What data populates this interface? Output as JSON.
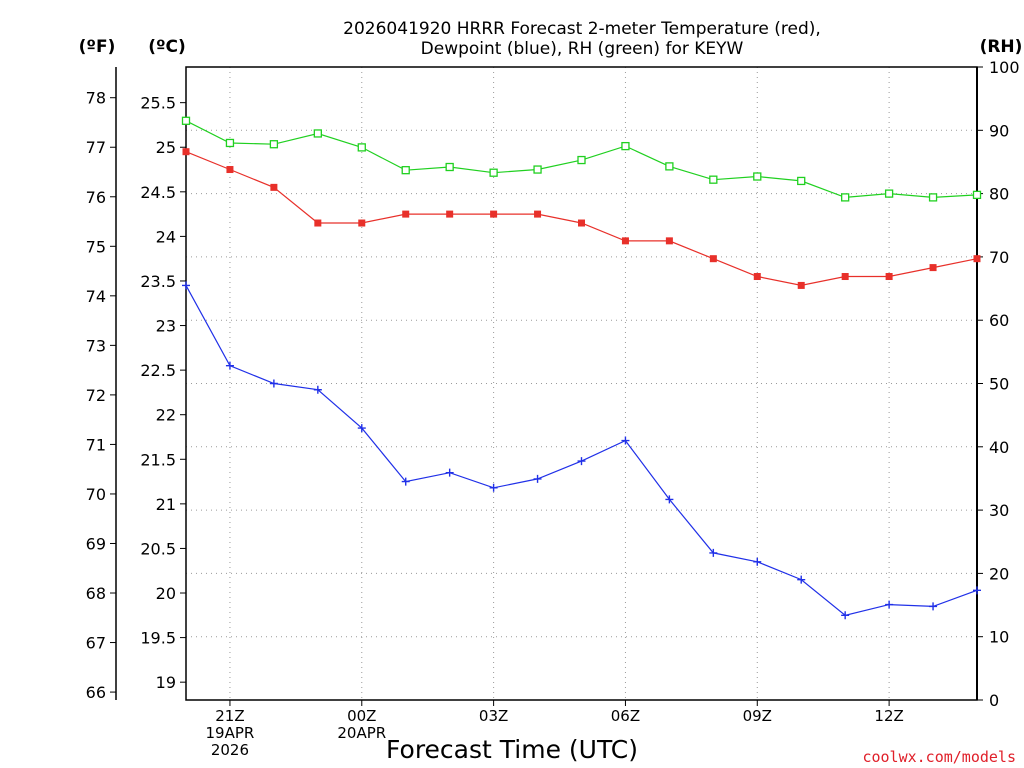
{
  "header": {
    "title_line1": "2026041920 HRRR Forecast 2-meter Temperature (red),",
    "title_line2": "Dewpoint (blue), RH (green) for KEYW"
  },
  "units": {
    "fahrenheit": "(ºF)",
    "celsius": "(ºC)",
    "rh": "(RH)"
  },
  "footer": {
    "credit": "coolwx.com/models",
    "credit_color": "#e0202a"
  },
  "chart_data": {
    "type": "line",
    "title": "2026041920 HRRR Forecast 2-meter Temperature (red), Dewpoint (blue), RH (green) for KEYW",
    "xlabel": "Forecast Time (UTC)",
    "x": [
      0,
      1,
      2,
      3,
      4,
      5,
      6,
      7,
      8,
      9,
      10,
      11,
      12,
      13,
      14,
      15,
      16,
      17,
      18
    ],
    "x_ticks": [
      {
        "x": 1,
        "lines": [
          "21Z",
          "19APR",
          "2026"
        ]
      },
      {
        "x": 4,
        "lines": [
          "00Z",
          "20APR"
        ]
      },
      {
        "x": 7,
        "lines": [
          "03Z"
        ]
      },
      {
        "x": 10,
        "lines": [
          "06Z"
        ]
      },
      {
        "x": 13,
        "lines": [
          "09Z"
        ]
      },
      {
        "x": 16,
        "lines": [
          "12Z"
        ]
      }
    ],
    "xlim": [
      0,
      18
    ],
    "celsius_axis": {
      "label": "(ºC)",
      "ylim": [
        18.8,
        25.9
      ],
      "ticks": [
        19,
        19.5,
        20,
        20.5,
        21,
        21.5,
        22,
        22.5,
        23,
        23.5,
        24,
        24.5,
        25,
        25.5
      ]
    },
    "fahrenheit_axis": {
      "label": "(ºF)",
      "ticks": [
        66,
        67,
        68,
        69,
        70,
        71,
        72,
        73,
        74,
        75,
        76,
        77,
        78
      ]
    },
    "rh_axis": {
      "label": "(RH)",
      "ylim": [
        0,
        100
      ],
      "ticks": [
        0,
        10,
        20,
        30,
        40,
        50,
        60,
        70,
        80,
        90,
        100
      ]
    },
    "grid": true,
    "series": [
      {
        "name": "Temperature",
        "color": "#e8302a",
        "marker": "filled-square",
        "axis": "celsius",
        "values": [
          24.95,
          24.75,
          24.55,
          24.15,
          24.15,
          24.25,
          24.25,
          24.25,
          24.25,
          24.15,
          23.95,
          23.95,
          23.75,
          23.55,
          23.45,
          23.55,
          23.55,
          23.65,
          23.75
        ]
      },
      {
        "name": "Dewpoint",
        "color": "#2030e8",
        "marker": "plus",
        "axis": "celsius",
        "values": [
          23.45,
          22.55,
          22.35,
          22.28,
          21.85,
          21.25,
          21.35,
          21.18,
          21.28,
          21.48,
          21.71,
          21.05,
          20.45,
          20.35,
          20.15,
          19.75,
          19.87,
          19.85,
          20.03
        ]
      },
      {
        "name": "RH",
        "color": "#20d020",
        "marker": "open-square",
        "axis": "rh",
        "values": [
          91.5,
          88.0,
          87.8,
          89.5,
          87.3,
          83.7,
          84.2,
          83.3,
          83.8,
          85.3,
          87.5,
          84.3,
          82.2,
          82.7,
          82.0,
          79.4,
          80.0,
          79.4,
          79.8
        ]
      }
    ]
  }
}
